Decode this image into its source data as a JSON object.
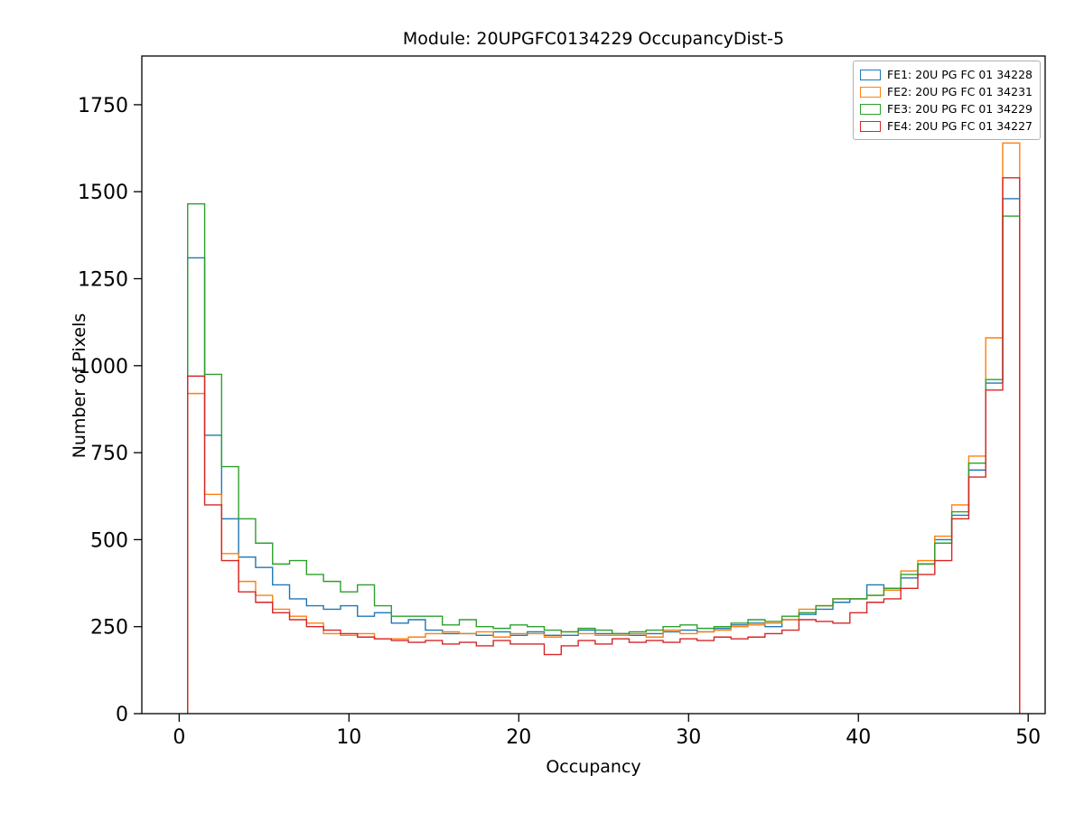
{
  "chart_data": {
    "type": "line",
    "subtype": "step-histogram",
    "title": "Module: 20UPGFC0134229 OccupancyDist-5",
    "xlabel": "Occupancy",
    "ylabel": "Number of Pixels",
    "xlim": [
      -2.2,
      51.0
    ],
    "ylim": [
      0,
      1890
    ],
    "xticks": [
      0,
      10,
      20,
      30,
      40,
      50
    ],
    "yticks": [
      0,
      250,
      500,
      750,
      1000,
      1250,
      1500,
      1750
    ],
    "grid": false,
    "legend_position": "upper right",
    "bin_start": 0.5,
    "bin_width": 1,
    "series": [
      {
        "name": "FE1: 20U PG FC 01 34228",
        "color": "#1f77b4",
        "values": [
          1310,
          800,
          560,
          450,
          420,
          370,
          330,
          310,
          300,
          310,
          280,
          290,
          260,
          270,
          240,
          230,
          230,
          225,
          235,
          225,
          235,
          225,
          225,
          240,
          230,
          230,
          225,
          230,
          235,
          240,
          235,
          245,
          255,
          260,
          250,
          270,
          285,
          300,
          320,
          330,
          370,
          360,
          390,
          430,
          500,
          570,
          700,
          950,
          1480
        ]
      },
      {
        "name": "FE2: 20U PG FC 01 34231",
        "color": "#ff7f0e",
        "values": [
          920,
          630,
          460,
          380,
          340,
          300,
          280,
          260,
          230,
          225,
          230,
          215,
          215,
          220,
          230,
          235,
          230,
          235,
          220,
          230,
          230,
          220,
          235,
          230,
          225,
          225,
          230,
          220,
          240,
          230,
          235,
          240,
          250,
          255,
          260,
          270,
          300,
          310,
          330,
          330,
          340,
          355,
          410,
          440,
          510,
          600,
          740,
          1080,
          1640
        ]
      },
      {
        "name": "FE3: 20U PG FC 01 34229",
        "color": "#2ca02c",
        "values": [
          1465,
          975,
          710,
          560,
          490,
          430,
          440,
          400,
          380,
          350,
          370,
          310,
          280,
          280,
          280,
          255,
          270,
          250,
          245,
          255,
          250,
          240,
          235,
          245,
          240,
          230,
          235,
          240,
          250,
          255,
          245,
          250,
          260,
          270,
          265,
          280,
          290,
          310,
          330,
          330,
          340,
          360,
          400,
          430,
          490,
          580,
          720,
          960,
          1430
        ]
      },
      {
        "name": "FE4: 20U PG FC 01 34227",
        "color": "#d62728",
        "values": [
          970,
          600,
          440,
          350,
          320,
          290,
          270,
          250,
          240,
          230,
          220,
          215,
          210,
          205,
          210,
          200,
          205,
          195,
          210,
          200,
          200,
          170,
          195,
          210,
          200,
          215,
          205,
          210,
          205,
          215,
          210,
          220,
          215,
          220,
          230,
          240,
          270,
          265,
          260,
          290,
          320,
          330,
          360,
          400,
          440,
          560,
          680,
          930,
          1540
        ]
      }
    ]
  }
}
